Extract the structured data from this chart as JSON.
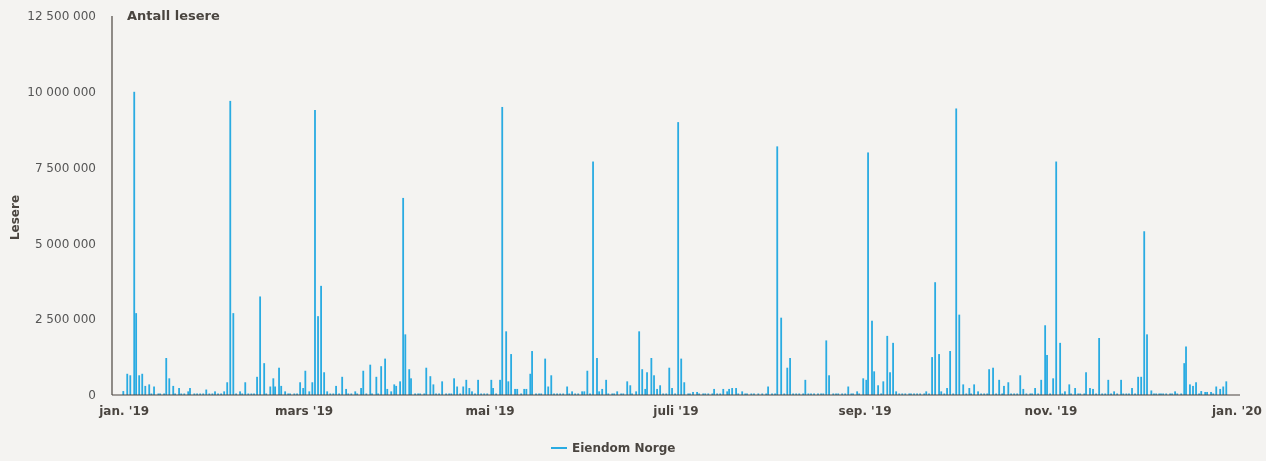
{
  "chart_data": {
    "type": "bar",
    "title": "Antall lesere",
    "ylabel": "Lesere",
    "legend": "bottom",
    "xlim": [
      "2018-12-28",
      "2020-01-02"
    ],
    "xticks": [
      {
        "value": "2019-01-01",
        "label": "jan. '19"
      },
      {
        "value": "2019-03-01",
        "label": "mars '19"
      },
      {
        "value": "2019-05-01",
        "label": "mai '19"
      },
      {
        "value": "2019-07-01",
        "label": "juli '19"
      },
      {
        "value": "2019-09-01",
        "label": "sep. '19"
      },
      {
        "value": "2019-11-01",
        "label": "nov. '19"
      },
      {
        "value": "2020-01-01",
        "label": "jan. '20"
      }
    ],
    "ylim": [
      0,
      12500000
    ],
    "yticks": [
      {
        "value": 0,
        "label": "0"
      },
      {
        "value": 2500000,
        "label": "2 500 000"
      },
      {
        "value": 5000000,
        "label": "5 000 000"
      },
      {
        "value": 7500000,
        "label": "7 500 000"
      },
      {
        "value": 10000000,
        "label": "10 000 000"
      },
      {
        "value": 12500000,
        "label": "12 500 000"
      }
    ],
    "grid": false,
    "series": [
      {
        "name": "Eiendom Norge",
        "color": "#29abe2",
        "x": [
          "2018-12-31T17:00",
          "2019-01-02T00:00",
          "2019-01-03T00:00",
          "2019-01-04T07:00",
          "2019-01-04T22:00",
          "2019-01-05T22:00",
          "2019-01-06T22:00",
          "2019-01-07T22:00",
          "2019-01-09T05:00",
          "2019-01-09T22:00",
          "2019-01-10T19:00",
          "2019-01-12T05:00",
          "2019-01-12T19:00",
          "2019-01-14T02:00",
          "2019-01-14T19:00",
          "2019-01-15T19:00",
          "2019-01-17T02:00",
          "2019-01-17T17:00",
          "2019-01-19T00:00",
          "2019-01-19T17:00",
          "2019-01-20T17:00",
          "2019-01-22T00:00",
          "2019-01-22T14:00",
          "2019-01-24T00:00",
          "2019-01-24T22:00",
          "2019-01-25T22:00",
          "2019-01-26T22:00",
          "2019-01-27T22:00",
          "2019-01-28T22:00",
          "2019-01-29T22:00",
          "2019-01-30T19:00",
          "2019-01-31T19:00",
          "2019-02-01T19:00",
          "2019-02-02T19:00",
          "2019-02-03T19:00",
          "2019-02-04T19:00",
          "2019-02-05T19:00",
          "2019-02-06T17:00",
          "2019-02-08T00:00",
          "2019-02-08T17:00",
          "2019-02-09T17:00",
          "2019-02-10T17:00",
          "2019-02-11T17:00",
          "2019-02-12T14:00",
          "2019-02-13T14:00",
          "2019-02-14T14:00",
          "2019-02-15T22:00",
          "2019-02-16T14:00",
          "2019-02-17T22:00",
          "2019-02-18T22:00",
          "2019-02-19T12:00",
          "2019-02-20T19:00",
          "2019-02-21T12:00",
          "2019-02-22T19:00",
          "2019-02-23T19:00",
          "2019-02-24T10:00",
          "2019-02-25T19:00",
          "2019-02-26T17:00",
          "2019-02-27T17:00",
          "2019-02-28T17:00",
          "2019-03-01T10:00",
          "2019-03-02T17:00",
          "2019-03-03T17:00",
          "2019-03-04T14:00",
          "2019-03-05T14:00",
          "2019-03-06T14:00",
          "2019-03-07T14:00",
          "2019-03-08T14:00",
          "2019-03-09T14:00",
          "2019-03-10T14:00",
          "2019-03-11T12:00",
          "2019-03-12T12:00",
          "2019-03-13T12:00",
          "2019-03-14T19:00",
          "2019-03-15T12:00",
          "2019-03-16T12:00",
          "2019-03-17T19:00",
          "2019-03-18T10:00",
          "2019-03-19T17:00",
          "2019-03-20T10:00",
          "2019-03-21T10:00",
          "2019-03-22T17:00",
          "2019-03-23T07:00",
          "2019-03-24T17:00",
          "2019-03-25T07:00",
          "2019-03-26T07:00",
          "2019-03-27T14:00",
          "2019-03-28T07:00",
          "2019-03-29T14:00",
          "2019-03-30T14:00",
          "2019-03-31T05:00",
          "2019-04-01T12:00",
          "2019-04-02T12:00",
          "2019-04-03T05:00",
          "2019-04-04T12:00",
          "2019-04-05T02:00",
          "2019-04-06T10:00",
          "2019-04-07T10:00",
          "2019-04-08T02:00",
          "2019-04-09T10:00",
          "2019-04-10T02:00",
          "2019-04-11T10:00",
          "2019-04-12T10:00",
          "2019-04-13T07:00",
          "2019-04-14T07:00",
          "2019-04-15T07:00",
          "2019-04-16T14:00",
          "2019-04-17T14:00",
          "2019-04-18T07:00",
          "2019-04-19T05:00",
          "2019-04-20T05:00",
          "2019-04-21T05:00",
          "2019-04-22T05:00",
          "2019-04-23T05:00",
          "2019-04-24T05:00",
          "2019-04-25T02:00",
          "2019-04-26T02:00",
          "2019-04-27T02:00",
          "2019-04-28T02:00",
          "2019-04-29T02:00",
          "2019-04-30T02:00",
          "2019-05-01T10:00",
          "2019-05-02T00:00",
          "2019-05-03T00:00",
          "2019-05-04T07:00",
          "2019-05-05T00:00",
          "2019-05-06T07:00",
          "2019-05-07T00:00",
          "2019-05-07T22:00",
          "2019-05-09T05:00",
          "2019-05-09T22:00",
          "2019-05-11T05:00",
          "2019-05-12T05:00",
          "2019-05-12T22:00",
          "2019-05-14T05:00",
          "2019-05-14T19:00",
          "2019-05-16T02:00",
          "2019-05-17T02:00",
          "2019-05-17T19:00",
          "2019-05-19T02:00",
          "2019-05-20T02:00",
          "2019-05-21T02:00",
          "2019-05-22T00:00",
          "2019-05-23T00:00",
          "2019-05-24T00:00",
          "2019-05-25T00:00",
          "2019-05-26T07:00",
          "2019-05-27T00:00",
          "2019-05-27T22:00",
          "2019-05-28T22:00",
          "2019-05-29T22:00",
          "2019-05-31T05:00",
          "2019-05-31T22:00",
          "2019-06-01T22:00",
          "2019-06-02T19:00",
          "2019-06-03T19:00",
          "2019-06-05T02:00",
          "2019-06-05T19:00",
          "2019-06-06T19:00",
          "2019-06-08T02:00",
          "2019-06-08T19:00",
          "2019-06-10T02:00",
          "2019-06-10T17:00",
          "2019-06-11T17:00",
          "2019-06-13T00:00",
          "2019-06-13T17:00",
          "2019-06-15T00:00",
          "2019-06-16T00:00",
          "2019-06-16T14:00",
          "2019-06-17T22:00",
          "2019-06-18T22:00",
          "2019-06-19T22:00",
          "2019-06-20T22:00",
          "2019-06-21T12:00",
          "2019-06-22T22:00",
          "2019-06-23T19:00",
          "2019-06-24T19:00",
          "2019-06-25T19:00",
          "2019-06-26T19:00",
          "2019-06-27T19:00",
          "2019-06-28T19:00",
          "2019-06-29T17:00",
          "2019-06-30T17:00",
          "2019-07-01T17:00",
          "2019-07-02T17:00",
          "2019-07-03T17:00",
          "2019-07-05T00:00",
          "2019-07-05T14:00",
          "2019-07-06T14:00",
          "2019-07-07T22:00",
          "2019-07-08T14:00",
          "2019-07-09T22:00",
          "2019-07-10T14:00",
          "2019-07-11T14:00",
          "2019-07-12T22:00",
          "2019-07-13T12:00",
          "2019-07-14T12:00",
          "2019-07-15T12:00",
          "2019-07-16T12:00",
          "2019-07-17T19:00",
          "2019-07-18T10:00",
          "2019-07-19T10:00",
          "2019-07-20T17:00",
          "2019-07-21T10:00",
          "2019-07-22T17:00",
          "2019-07-23T17:00",
          "2019-07-24T07:00",
          "2019-07-25T17:00",
          "2019-07-26T14:00",
          "2019-07-28T00:00",
          "2019-07-29T07:00",
          "2019-07-30T14:00",
          "2019-07-31T05:00",
          "2019-08-01T12:00",
          "2019-08-02T12:00",
          "2019-08-03T05:00",
          "2019-08-04T12:00",
          "2019-08-05T12:00",
          "2019-08-06T12:00",
          "2019-08-07T10:00",
          "2019-08-08T10:00",
          "2019-08-09T10:00",
          "2019-08-10T10:00",
          "2019-08-11T17:00",
          "2019-08-12T10:00",
          "2019-08-13T10:00",
          "2019-08-14T07:00",
          "2019-08-15T07:00",
          "2019-08-16T14:00",
          "2019-08-17T14:00",
          "2019-08-18T07:00",
          "2019-08-19T07:00",
          "2019-08-20T05:00",
          "2019-08-21T14:00",
          "2019-08-22T12:00",
          "2019-08-23T05:00",
          "2019-08-24T12:00",
          "2019-08-25T12:00",
          "2019-08-26T12:00",
          "2019-08-27T12:00",
          "2019-08-28T02:00",
          "2019-08-29T10:00",
          "2019-08-30T02:00",
          "2019-08-31T10:00",
          "2019-09-01T10:00",
          "2019-09-02T00:00",
          "2019-09-03T07:00",
          "2019-09-04T00:00",
          "2019-09-05T07:00",
          "2019-09-06T07:00",
          "2019-09-07T00:00",
          "2019-09-08T07:00",
          "2019-09-09T05:00",
          "2019-09-10T05:00",
          "2019-09-11T05:00",
          "2019-09-12T05:00",
          "2019-09-13T05:00",
          "2019-09-14T05:00",
          "2019-09-15T12:00",
          "2019-09-16T02:00",
          "2019-09-17T02:00",
          "2019-09-18T02:00",
          "2019-09-19T02:00",
          "2019-09-20T10:00",
          "2019-09-21T02:00",
          "2019-09-22T00:00",
          "2019-09-23T00:00",
          "2019-09-24T00:00",
          "2019-09-25T07:00",
          "2019-09-26T00:00",
          "2019-09-27T00:00",
          "2019-09-27T22:00",
          "2019-09-28T22:00",
          "2019-09-29T22:00",
          "2019-09-30T22:00",
          "2019-10-01T22:00",
          "2019-10-03T05:00",
          "2019-10-04T05:00",
          "2019-10-05T05:00",
          "2019-10-05T19:00",
          "2019-10-06T19:00",
          "2019-10-08T02:00",
          "2019-10-09T02:00",
          "2019-10-10T02:00",
          "2019-10-11T02:00",
          "2019-10-11T17:00",
          "2019-10-13T00:00",
          "2019-10-14T00:00",
          "2019-10-15T00:00",
          "2019-10-16T00:00",
          "2019-10-16T14:00",
          "2019-10-18T00:00",
          "2019-10-18T22:00",
          "2019-10-19T22:00",
          "2019-10-20T22:00",
          "2019-10-21T22:00",
          "2019-10-22T22:00",
          "2019-10-23T22:00",
          "2019-10-25T05:00",
          "2019-10-25T19:00",
          "2019-10-26T19:00",
          "2019-10-27T19:00",
          "2019-10-28T19:00",
          "2019-10-30T02:00",
          "2019-10-30T17:00",
          "2019-10-31T17:00",
          "2019-11-01T17:00",
          "2019-11-02T17:00",
          "2019-11-04T00:00",
          "2019-11-04T17:00",
          "2019-11-05T14:00",
          "2019-11-07T00:00",
          "2019-11-07T14:00",
          "2019-11-08T22:00",
          "2019-11-09T22:00",
          "2019-11-10T14:00",
          "2019-11-11T22:00",
          "2019-11-12T12:00",
          "2019-11-13T19:00",
          "2019-11-14T19:00",
          "2019-11-15T19:00",
          "2019-11-16T19:00",
          "2019-11-17T19:00",
          "2019-11-18T19:00",
          "2019-11-19T19:00",
          "2019-11-20T17:00",
          "2019-11-21T17:00",
          "2019-11-22T17:00",
          "2019-11-24T00:00",
          "2019-11-24T17:00",
          "2019-11-25T17:00",
          "2019-11-26T14:00",
          "2019-11-27T14:00",
          "2019-11-28T14:00",
          "2019-11-29T14:00",
          "2019-11-30T14:00",
          "2019-12-01T14:00",
          "2019-12-02T12:00",
          "2019-12-03T22:00",
          "2019-12-04T19:00",
          "2019-12-05T12:00",
          "2019-12-06T12:00",
          "2019-12-07T02:00",
          "2019-12-07T19:00",
          "2019-12-08T19:00",
          "2019-12-10T02:00",
          "2019-12-10T17:00",
          "2019-12-11T17:00",
          "2019-12-12T10:00",
          "2019-12-13T17:00",
          "2019-12-14T17:00",
          "2019-12-15T07:00",
          "2019-12-16T14:00",
          "2019-12-17T14:00",
          "2019-12-18T14:00",
          "2019-12-19T14:00",
          "2019-12-20T07:00",
          "2019-12-21T14:00",
          "2019-12-22T05:00",
          "2019-12-23T12:00",
          "2019-12-24T05:00",
          "2019-12-25T05:00",
          "2019-12-26T12:00",
          "2019-12-27T12:00",
          "2019-12-28T12:00"
        ],
        "values": [
          130000,
          700000,
          650000,
          10000000,
          2700000,
          650000,
          700000,
          300000,
          350000,
          50000,
          280000,
          50000,
          50000,
          50000,
          1220000,
          550000,
          300000,
          50000,
          230000,
          50000,
          50000,
          120000,
          230000,
          50000,
          50000,
          50000,
          50000,
          180000,
          50000,
          50000,
          120000,
          50000,
          50000,
          120000,
          420000,
          9700000,
          2700000,
          50000,
          120000,
          50000,
          420000,
          50000,
          50000,
          50000,
          600000,
          3250000,
          1050000,
          50000,
          280000,
          550000,
          280000,
          900000,
          300000,
          120000,
          50000,
          50000,
          50000,
          50000,
          420000,
          230000,
          800000,
          120000,
          420000,
          9400000,
          2600000,
          3600000,
          750000,
          120000,
          50000,
          50000,
          300000,
          50000,
          600000,
          200000,
          50000,
          50000,
          120000,
          50000,
          230000,
          800000,
          50000,
          1000000,
          50000,
          600000,
          50000,
          950000,
          1200000,
          200000,
          120000,
          350000,
          300000,
          450000,
          6500000,
          2000000,
          850000,
          550000,
          50000,
          50000,
          50000,
          50000,
          900000,
          620000,
          350000,
          50000,
          50000,
          450000,
          50000,
          50000,
          50000,
          550000,
          280000,
          50000,
          280000,
          500000,
          230000,
          120000,
          50000,
          500000,
          50000,
          50000,
          50000,
          500000,
          230000,
          50000,
          500000,
          9500000,
          2100000,
          450000,
          1350000,
          200000,
          200000,
          50000,
          200000,
          200000,
          700000,
          1450000,
          50000,
          50000,
          50000,
          1200000,
          280000,
          650000,
          50000,
          50000,
          50000,
          50000,
          280000,
          50000,
          120000,
          50000,
          50000,
          120000,
          120000,
          800000,
          50000,
          7700000,
          1220000,
          120000,
          200000,
          500000,
          50000,
          50000,
          50000,
          120000,
          50000,
          50000,
          450000,
          320000,
          50000,
          120000,
          2100000,
          850000,
          200000,
          750000,
          1220000,
          650000,
          200000,
          320000,
          50000,
          50000,
          900000,
          230000,
          50000,
          9000000,
          1200000,
          420000,
          50000,
          50000,
          100000,
          100000,
          50000,
          50000,
          50000,
          50000,
          50000,
          200000,
          50000,
          50000,
          200000,
          120000,
          200000,
          230000,
          230000,
          50000,
          120000,
          50000,
          50000,
          50000,
          50000,
          50000,
          50000,
          50000,
          280000,
          50000,
          50000,
          8200000,
          2550000,
          50000,
          900000,
          1220000,
          50000,
          50000,
          50000,
          50000,
          500000,
          50000,
          50000,
          50000,
          50000,
          50000,
          50000,
          1800000,
          650000,
          50000,
          50000,
          50000,
          50000,
          50000,
          280000,
          50000,
          50000,
          120000,
          50000,
          550000,
          500000,
          8000000,
          2450000,
          780000,
          320000,
          50000,
          450000,
          1950000,
          750000,
          1720000,
          120000,
          50000,
          50000,
          50000,
          50000,
          50000,
          50000,
          50000,
          50000,
          50000,
          120000,
          50000,
          1250000,
          3720000,
          1350000,
          120000,
          50000,
          230000,
          1450000,
          50000,
          9450000,
          2650000,
          350000,
          50000,
          230000,
          50000,
          350000,
          120000,
          50000,
          50000,
          50000,
          850000,
          900000,
          50000,
          500000,
          50000,
          300000,
          420000,
          50000,
          50000,
          50000,
          650000,
          200000,
          50000,
          50000,
          50000,
          230000,
          50000,
          500000,
          2300000,
          1320000,
          50000,
          550000,
          7700000,
          1720000,
          50000,
          120000,
          350000,
          50000,
          230000,
          50000,
          50000,
          50000,
          750000,
          230000,
          200000,
          50000,
          1880000,
          50000,
          50000,
          500000,
          50000,
          120000,
          50000,
          500000,
          50000,
          50000,
          50000,
          230000,
          50000,
          600000,
          600000,
          5400000,
          2000000,
          150000,
          50000,
          50000,
          50000,
          50000,
          50000,
          50000,
          50000,
          50000,
          120000,
          50000,
          50000,
          1050000,
          1600000,
          350000,
          300000,
          420000,
          50000,
          130000,
          100000,
          100000,
          100000,
          50000,
          280000,
          200000,
          280000,
          450000
        ]
      }
    ]
  }
}
